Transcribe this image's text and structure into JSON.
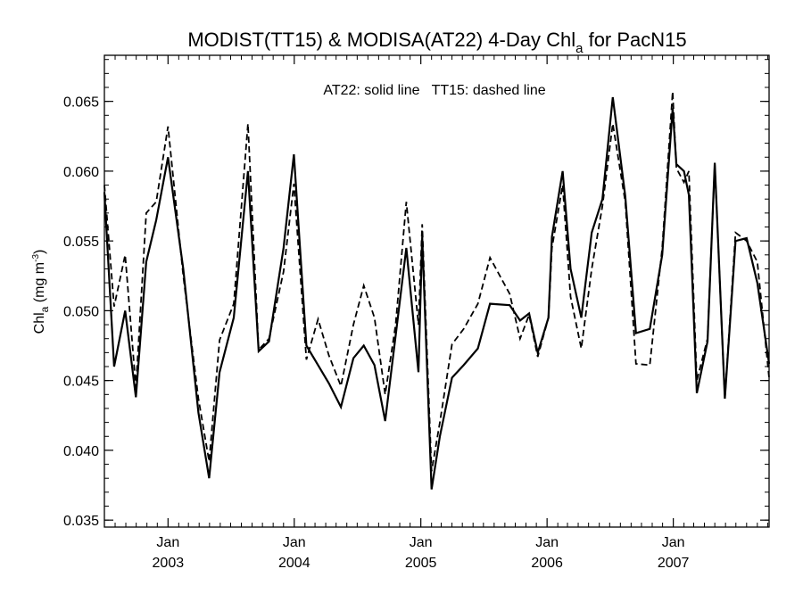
{
  "chart_data": {
    "type": "line",
    "title": "MODIST(TT15) & MODISA(AT22) 4-Day Chl",
    "title_subscript": "a",
    "title_suffix": " for PacN15",
    "annotation": "AT22: solid line   TT15: dashed line",
    "ylabel": "Chl",
    "ylabel_subscript": "a",
    "ylabel_unit_prefix": " (mg m",
    "ylabel_unit_superscript": "-3",
    "ylabel_unit_suffix": ")",
    "xlabel": "",
    "ylim": [
      0.0345,
      0.0683
    ],
    "xlim": [
      "2002-07-01",
      "2007-10-05"
    ],
    "yticks": [
      "0.035",
      "0.040",
      "0.045",
      "0.050",
      "0.055",
      "0.060",
      "0.065"
    ],
    "xticks": [
      {
        "date": "2003-01-01",
        "month": "Jan",
        "year": "2003"
      },
      {
        "date": "2004-01-01",
        "month": "Jan",
        "year": "2004"
      },
      {
        "date": "2005-01-01",
        "month": "Jan",
        "year": "2005"
      },
      {
        "date": "2006-01-01",
        "month": "Jan",
        "year": "2006"
      },
      {
        "date": "2007-01-01",
        "month": "Jan",
        "year": "2007"
      }
    ],
    "series": [
      {
        "style": "solid",
        "color": "#000000",
        "points": [
          [
            "2002-07-01",
            0.0585
          ],
          [
            "2002-07-29",
            0.046
          ],
          [
            "2002-08-30",
            0.05
          ],
          [
            "2002-09-30",
            0.0438
          ],
          [
            "2002-10-30",
            0.0535
          ],
          [
            "2002-11-28",
            0.0565
          ],
          [
            "2003-01-01",
            0.061
          ],
          [
            "2003-02-14",
            0.053
          ],
          [
            "2003-03-30",
            0.0427
          ],
          [
            "2003-04-30",
            0.038
          ],
          [
            "2003-05-30",
            0.0456
          ],
          [
            "2003-07-10",
            0.0495
          ],
          [
            "2003-08-20",
            0.06
          ],
          [
            "2003-09-20",
            0.0471
          ],
          [
            "2003-10-20",
            0.0478
          ],
          [
            "2003-12-01",
            0.0545
          ],
          [
            "2003-12-31",
            0.0612
          ],
          [
            "2004-02-05",
            0.0475
          ],
          [
            "2004-03-10",
            0.0461
          ],
          [
            "2004-04-10",
            0.0448
          ],
          [
            "2004-05-15",
            0.0431
          ],
          [
            "2004-06-20",
            0.0466
          ],
          [
            "2004-07-20",
            0.0475
          ],
          [
            "2004-08-20",
            0.0461
          ],
          [
            "2004-09-20",
            0.0421
          ],
          [
            "2004-10-20",
            0.0482
          ],
          [
            "2004-11-20",
            0.0545
          ],
          [
            "2004-12-25",
            0.0456
          ],
          [
            "2005-01-05",
            0.0553
          ],
          [
            "2005-02-01",
            0.0372
          ],
          [
            "2005-02-25",
            0.041
          ],
          [
            "2005-04-01",
            0.0452
          ],
          [
            "2005-05-05",
            0.0461
          ],
          [
            "2005-06-15",
            0.0473
          ],
          [
            "2005-07-20",
            0.0505
          ],
          [
            "2005-09-15",
            0.0504
          ],
          [
            "2005-10-15",
            0.0493
          ],
          [
            "2005-11-10",
            0.0498
          ],
          [
            "2005-12-05",
            0.047
          ],
          [
            "2006-01-05",
            0.0495
          ],
          [
            "2006-01-15",
            0.0553
          ],
          [
            "2006-02-15",
            0.06
          ],
          [
            "2006-03-10",
            0.053
          ],
          [
            "2006-04-10",
            0.0495
          ],
          [
            "2006-05-10",
            0.0556
          ],
          [
            "2006-06-10",
            0.058
          ],
          [
            "2006-07-10",
            0.0653
          ],
          [
            "2006-08-15",
            0.0582
          ],
          [
            "2006-09-15",
            0.0484
          ],
          [
            "2006-10-25",
            0.0487
          ],
          [
            "2006-11-30",
            0.054
          ],
          [
            "2006-12-30",
            0.0645
          ],
          [
            "2007-01-10",
            0.0605
          ],
          [
            "2007-02-01",
            0.06
          ],
          [
            "2007-02-15",
            0.0583
          ],
          [
            "2007-03-10",
            0.0441
          ],
          [
            "2007-04-10",
            0.0478
          ],
          [
            "2007-05-01",
            0.0606
          ],
          [
            "2007-05-30",
            0.0437
          ],
          [
            "2007-06-30",
            0.055
          ],
          [
            "2007-08-01",
            0.0552
          ],
          [
            "2007-09-01",
            0.052
          ],
          [
            "2007-10-05",
            0.0462
          ]
        ]
      },
      {
        "style": "dashed",
        "color": "#000000",
        "points": [
          [
            "2002-07-01",
            0.059
          ],
          [
            "2002-07-29",
            0.0503
          ],
          [
            "2002-08-30",
            0.054
          ],
          [
            "2002-09-30",
            0.0445
          ],
          [
            "2002-10-30",
            0.057
          ],
          [
            "2002-11-28",
            0.0578
          ],
          [
            "2003-01-01",
            0.0632
          ],
          [
            "2003-02-14",
            0.0525
          ],
          [
            "2003-03-30",
            0.0437
          ],
          [
            "2003-04-30",
            0.0392
          ],
          [
            "2003-05-30",
            0.0479
          ],
          [
            "2003-07-10",
            0.0505
          ],
          [
            "2003-08-20",
            0.0634
          ],
          [
            "2003-09-20",
            0.0472
          ],
          [
            "2003-10-20",
            0.048
          ],
          [
            "2003-12-01",
            0.0528
          ],
          [
            "2003-12-31",
            0.0591
          ],
          [
            "2004-02-05",
            0.0465
          ],
          [
            "2004-03-10",
            0.0494
          ],
          [
            "2004-04-10",
            0.0468
          ],
          [
            "2004-05-15",
            0.0446
          ],
          [
            "2004-06-20",
            0.049
          ],
          [
            "2004-07-20",
            0.0518
          ],
          [
            "2004-08-20",
            0.0495
          ],
          [
            "2004-09-20",
            0.044
          ],
          [
            "2004-10-20",
            0.049
          ],
          [
            "2004-11-20",
            0.0578
          ],
          [
            "2004-12-25",
            0.049
          ],
          [
            "2005-01-05",
            0.0562
          ],
          [
            "2005-02-01",
            0.0385
          ],
          [
            "2005-02-25",
            0.042
          ],
          [
            "2005-04-01",
            0.0476
          ],
          [
            "2005-05-05",
            0.0487
          ],
          [
            "2005-06-15",
            0.0505
          ],
          [
            "2005-07-20",
            0.0538
          ],
          [
            "2005-09-15",
            0.0512
          ],
          [
            "2005-10-15",
            0.048
          ],
          [
            "2005-11-10",
            0.0497
          ],
          [
            "2005-12-05",
            0.0467
          ],
          [
            "2006-01-05",
            0.0495
          ],
          [
            "2006-01-15",
            0.0545
          ],
          [
            "2006-02-15",
            0.059
          ],
          [
            "2006-03-10",
            0.051
          ],
          [
            "2006-04-10",
            0.0473
          ],
          [
            "2006-05-10",
            0.053
          ],
          [
            "2006-06-10",
            0.0575
          ],
          [
            "2006-07-10",
            0.0634
          ],
          [
            "2006-08-15",
            0.0578
          ],
          [
            "2006-09-15",
            0.0462
          ],
          [
            "2006-10-25",
            0.0461
          ],
          [
            "2006-11-30",
            0.0545
          ],
          [
            "2006-12-30",
            0.0657
          ],
          [
            "2007-01-10",
            0.0602
          ],
          [
            "2007-02-01",
            0.0592
          ],
          [
            "2007-02-15",
            0.06
          ],
          [
            "2007-03-10",
            0.045
          ],
          [
            "2007-04-10",
            0.048
          ],
          [
            "2007-05-01",
            0.0605
          ],
          [
            "2007-05-30",
            0.0437
          ],
          [
            "2007-06-30",
            0.0556
          ],
          [
            "2007-08-01",
            0.055
          ],
          [
            "2007-09-01",
            0.0535
          ],
          [
            "2007-10-05",
            0.0452
          ]
        ]
      }
    ]
  }
}
